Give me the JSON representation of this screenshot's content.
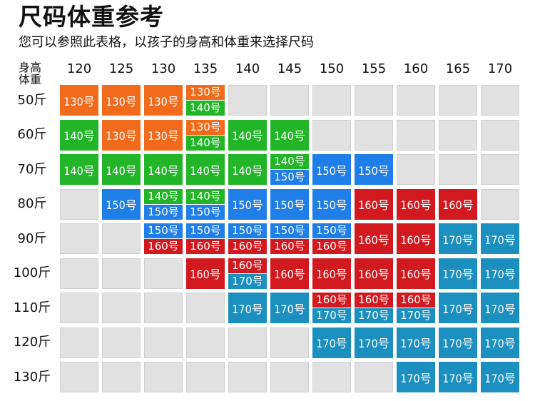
{
  "title": "尺码体重参考",
  "subtitle": "您可以参照此表格，以孩子的身高和体重来选择尺码",
  "corner": {
    "height_label": "身高",
    "weight_label": "体重"
  },
  "heights": [
    "120",
    "125",
    "130",
    "135",
    "140",
    "145",
    "150",
    "155",
    "160",
    "165",
    "170"
  ],
  "weights": [
    "50斤",
    "60斤",
    "70斤",
    "80斤",
    "90斤",
    "100斤",
    "110斤",
    "120斤",
    "130斤"
  ],
  "colors": {
    "130号": "#f26a1b",
    "140号": "#21b527",
    "150号": "#1f7ee8",
    "160号": "#d2191f",
    "170号": "#1a8fc0",
    "empty": "#e1e1e1"
  },
  "grid": [
    [
      [
        "130号"
      ],
      [
        "130号"
      ],
      [
        "130号"
      ],
      [
        "130号",
        "140号"
      ],
      [],
      [],
      [],
      [],
      [],
      [],
      []
    ],
    [
      [
        "140号"
      ],
      [
        "130号"
      ],
      [
        "130号"
      ],
      [
        "130号",
        "140号"
      ],
      [
        "140号"
      ],
      [
        "140号"
      ],
      [],
      [],
      [],
      [],
      []
    ],
    [
      [
        "140号"
      ],
      [
        "140号"
      ],
      [
        "140号"
      ],
      [
        "140号"
      ],
      [
        "140号"
      ],
      [
        "140号",
        "150号"
      ],
      [
        "150号"
      ],
      [
        "150号"
      ],
      [],
      [],
      []
    ],
    [
      [],
      [
        "150号"
      ],
      [
        "140号",
        "150号"
      ],
      [
        "140号",
        "150号"
      ],
      [
        "150号"
      ],
      [
        "150号"
      ],
      [
        "150号"
      ],
      [
        "160号"
      ],
      [
        "160号"
      ],
      [
        "160号"
      ],
      []
    ],
    [
      [],
      [],
      [
        "150号",
        "160号"
      ],
      [
        "150号",
        "160号"
      ],
      [
        "150号",
        "160号"
      ],
      [
        "150号",
        "160号"
      ],
      [
        "150号",
        "160号"
      ],
      [
        "160号"
      ],
      [
        "160号"
      ],
      [
        "170号"
      ],
      [
        "170号"
      ]
    ],
    [
      [],
      [],
      [],
      [
        "160号"
      ],
      [
        "160号",
        "170号"
      ],
      [
        "160号"
      ],
      [
        "160号"
      ],
      [
        "160号"
      ],
      [
        "160号"
      ],
      [
        "170号"
      ],
      [
        "170号"
      ]
    ],
    [
      [],
      [],
      [],
      [],
      [
        "170号"
      ],
      [
        "170号"
      ],
      [
        "160号",
        "170号"
      ],
      [
        "160号",
        "170号"
      ],
      [
        "160号",
        "170号"
      ],
      [
        "170号"
      ],
      [
        "170号"
      ]
    ],
    [
      [],
      [],
      [],
      [],
      [],
      [],
      [
        "170号"
      ],
      [
        "170号"
      ],
      [
        "170号"
      ],
      [
        "170号"
      ],
      [
        "170号"
      ]
    ],
    [
      [],
      [],
      [],
      [],
      [],
      [],
      [],
      [],
      [
        "170号"
      ],
      [
        "170号"
      ],
      [
        "170号"
      ]
    ]
  ]
}
